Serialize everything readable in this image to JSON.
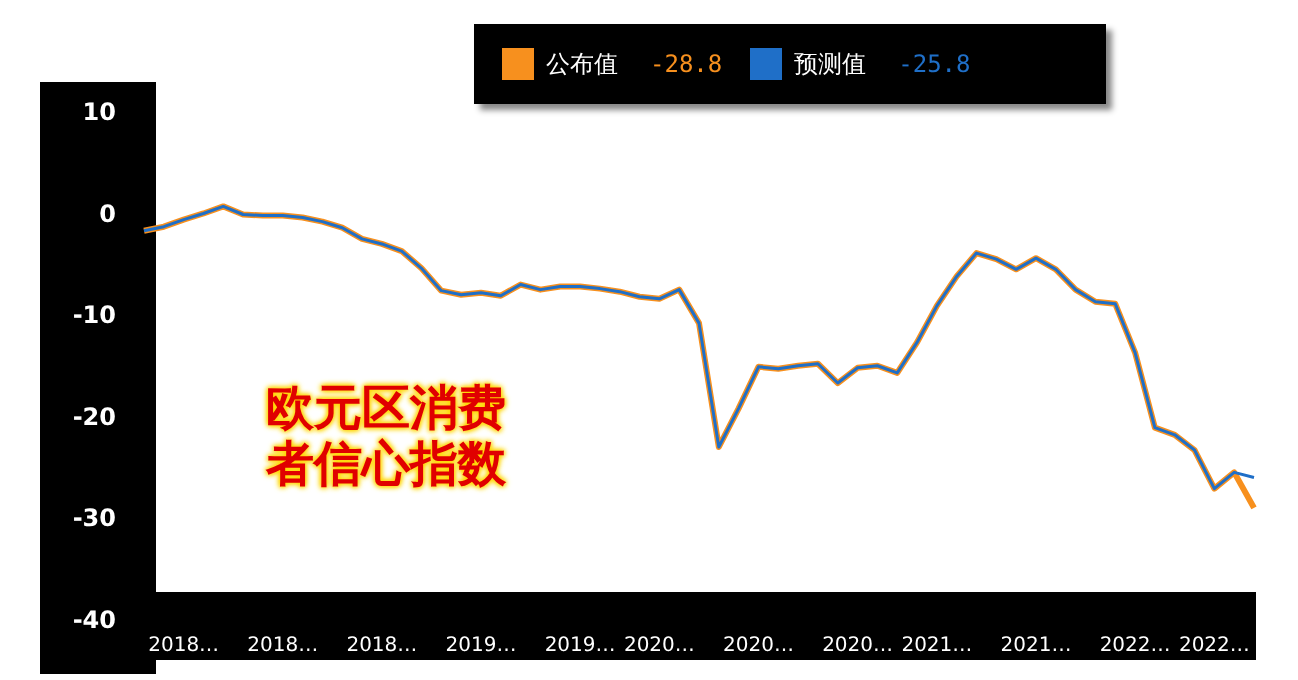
{
  "chart_data": {
    "type": "line",
    "title": "欧元区消费者信心指数",
    "categories": [
      null,
      null,
      "2018…",
      null,
      null,
      null,
      null,
      "2018…",
      null,
      null,
      null,
      null,
      "2018…",
      null,
      null,
      null,
      null,
      "2019…",
      null,
      null,
      null,
      null,
      "2019…",
      null,
      null,
      null,
      "2020…",
      null,
      null,
      null,
      null,
      "2020…",
      null,
      null,
      null,
      null,
      "2020…",
      null,
      null,
      null,
      "2021…",
      null,
      null,
      null,
      null,
      "2021…",
      null,
      null,
      null,
      null,
      "2022…",
      null,
      null,
      null,
      "2022…",
      null,
      null
    ],
    "series": [
      {
        "name": "公布值",
        "color": "#f7901e",
        "values": [
          -1.5,
          -1.1,
          -0.4,
          0.2,
          0.9,
          0.1,
          0,
          0,
          -0.2,
          -0.6,
          -1.2,
          -2.3,
          -2.8,
          -3.5,
          -5.2,
          -7.4,
          -7.8,
          -7.6,
          -7.9,
          -6.8,
          -7.3,
          -7.0,
          -7.0,
          -7.2,
          -7.5,
          -8.0,
          -8.2,
          -7.3,
          -10.6,
          -22.8,
          -19.0,
          -14.9,
          -15.1,
          -14.8,
          -14.6,
          -16.5,
          -15.0,
          -14.8,
          -15.5,
          -12.5,
          -8.9,
          -6.0,
          -3.7,
          -4.3,
          -5.3,
          -4.2,
          -5.3,
          -7.3,
          -8.5,
          -8.7,
          -13.5,
          -20.9,
          -21.6,
          -23.1,
          -26.9,
          -25.3,
          -28.8
        ]
      },
      {
        "name": "预测值",
        "color": "#1f6fc8",
        "values": [
          -1.5,
          -1.1,
          -0.4,
          0.2,
          0.9,
          0.1,
          0,
          0,
          -0.2,
          -0.6,
          -1.2,
          -2.3,
          -2.8,
          -3.5,
          -5.2,
          -7.4,
          -7.8,
          -7.6,
          -7.9,
          -6.8,
          -7.3,
          -7.0,
          -7.0,
          -7.2,
          -7.5,
          -8.0,
          -8.2,
          -7.3,
          -10.6,
          -22.8,
          -19.0,
          -14.9,
          -15.1,
          -14.8,
          -14.6,
          -16.5,
          -15.0,
          -14.8,
          -15.5,
          -12.5,
          -8.9,
          -6.0,
          -3.7,
          -4.3,
          -5.3,
          -4.2,
          -5.3,
          -7.3,
          -8.5,
          -8.7,
          -13.5,
          -20.9,
          -21.6,
          -23.1,
          -26.9,
          -25.3,
          -25.8
        ]
      }
    ],
    "annotations": [
      "-28.8",
      "-25.8"
    ],
    "ylim": [
      -40,
      10
    ],
    "yticks": [
      -40,
      -30,
      -20,
      -10,
      0,
      10
    ],
    "grid": false,
    "legend": "top",
    "marker": "none",
    "line_style": "solid"
  }
}
